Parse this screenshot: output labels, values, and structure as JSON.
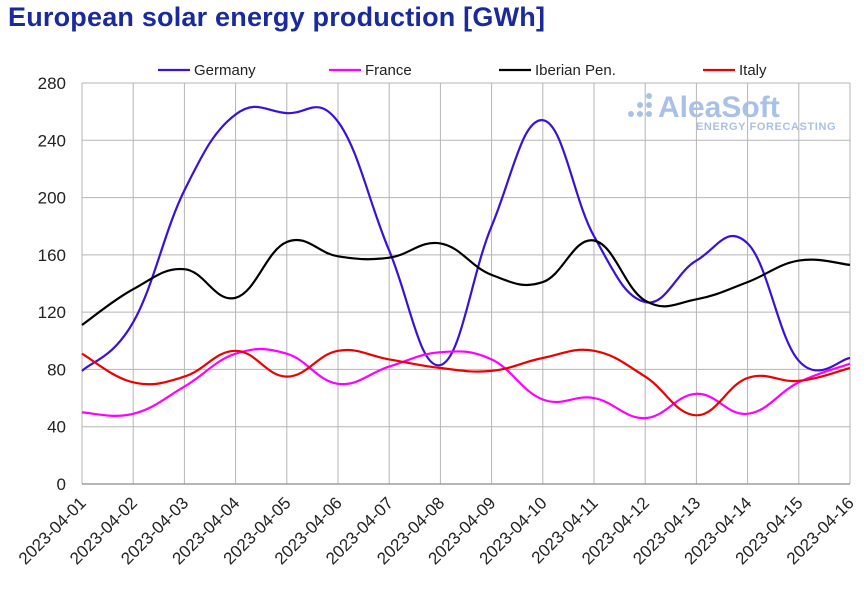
{
  "chart_data": {
    "type": "line",
    "title": "European solar energy production [GWh]",
    "xlabel": "",
    "ylabel": "",
    "ylim": [
      0,
      280
    ],
    "yticks": [
      0,
      40,
      80,
      120,
      160,
      200,
      240,
      280
    ],
    "grid": true,
    "legend": "top",
    "categories": [
      "2023-04-01",
      "2023-04-02",
      "2023-04-03",
      "2023-04-04",
      "2023-04-05",
      "2023-04-06",
      "2023-04-07",
      "2023-04-08",
      "2023-04-09",
      "2023-04-10",
      "2023-04-11",
      "2023-04-12",
      "2023-04-13",
      "2023-04-14",
      "2023-04-15",
      "2023-04-16"
    ],
    "series": [
      {
        "name": "Germany",
        "color": "#3b10d8",
        "values": [
          79,
          113,
          205,
          258,
          259,
          253,
          163,
          83,
          180,
          254,
          173,
          127,
          156,
          168,
          86,
          88
        ]
      },
      {
        "name": "France",
        "color": "#ff00ff",
        "values": [
          50,
          49,
          68,
          91,
          91,
          70,
          82,
          92,
          87,
          59,
          60,
          46,
          63,
          49,
          71,
          84
        ]
      },
      {
        "name": "Iberian Pen.",
        "color": "#000000",
        "values": [
          111,
          136,
          150,
          130,
          169,
          159,
          158,
          168,
          146,
          141,
          170,
          128,
          129,
          141,
          156,
          153
        ]
      },
      {
        "name": "Italy",
        "color": "#ee0000",
        "values": [
          91,
          71,
          75,
          93,
          75,
          93,
          87,
          81,
          79,
          88,
          93,
          75,
          48,
          74,
          72,
          81
        ]
      }
    ]
  },
  "logo": {
    "name": "AleaSoft",
    "tagline": "ENERGY FORECASTING"
  }
}
